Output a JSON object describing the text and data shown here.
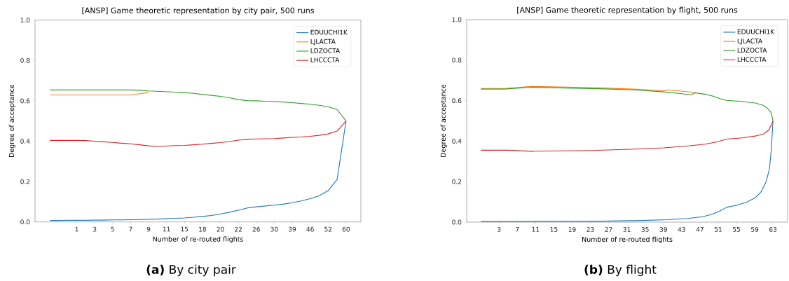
{
  "chart_data": [
    {
      "type": "line",
      "title": "[ANSP] Game theoretic representation by city pair, 500 runs",
      "xlabel": "Number of re-routed flights",
      "ylabel": "Degree of acceptance",
      "legend": "top right",
      "ylim": [
        0,
        1
      ],
      "categories": [
        null,
        null,
        null,
        "1",
        null,
        "3",
        null,
        "5",
        null,
        "7",
        null,
        "9",
        null,
        "11",
        null,
        "15",
        null,
        "18",
        null,
        "20",
        null,
        "22",
        null,
        "26",
        null,
        "30",
        null,
        "39",
        null,
        "46",
        null,
        "52",
        null,
        "60"
      ],
      "yticks": [
        {
          "value": 0,
          "label": "0.0"
        },
        {
          "value": 0.2,
          "label": "0.2"
        },
        {
          "value": 0.4,
          "label": "0.4"
        },
        {
          "value": 0.6,
          "label": "0.6"
        },
        {
          "value": 0.8,
          "label": "0.8"
        },
        {
          "value": 1,
          "label": "1.0"
        }
      ],
      "series": [
        {
          "name": "EDUUCHI1K",
          "color": "#1f77b4",
          "values": [
            0.007,
            0.007,
            0.008,
            0.008,
            0.008,
            0.009,
            0.009,
            0.01,
            0.01,
            0.011,
            0.012,
            0.013,
            0.014,
            0.016,
            0.018,
            0.02,
            0.023,
            0.027,
            0.032,
            0.039,
            0.048,
            0.058,
            0.069,
            0.075,
            0.079,
            0.083,
            0.088,
            0.095,
            0.104,
            0.115,
            0.129,
            0.155,
            0.21,
            0.5
          ]
        },
        {
          "name": "LJLACTA",
          "color": "#ff7f0e",
          "values": [
            0.629,
            0.629,
            0.629,
            0.629,
            0.629,
            0.629,
            0.629,
            0.629,
            0.629,
            0.629,
            0.635,
            0.641,
            null,
            null,
            null,
            null,
            null,
            null,
            null,
            null,
            null,
            null,
            null,
            null,
            null,
            null,
            null,
            null,
            null,
            null,
            null,
            null,
            null,
            null
          ]
        },
        {
          "name": "LDZOCTA",
          "color": "#2ca02c",
          "values": [
            0.654,
            0.654,
            0.654,
            0.654,
            0.654,
            0.654,
            0.654,
            0.654,
            0.654,
            0.654,
            0.652,
            0.649,
            0.647,
            0.645,
            0.643,
            0.641,
            0.637,
            0.632,
            0.627,
            0.622,
            0.615,
            0.606,
            0.601,
            0.6,
            0.598,
            0.597,
            0.594,
            0.591,
            0.587,
            0.583,
            0.578,
            0.571,
            0.557,
            0.5
          ]
        },
        {
          "name": "LHCCCTA",
          "color": "#d62728",
          "values": [
            0.404,
            0.404,
            0.404,
            0.404,
            0.403,
            0.4,
            0.397,
            0.394,
            0.39,
            0.387,
            0.382,
            0.377,
            0.374,
            0.376,
            0.378,
            0.379,
            0.382,
            0.385,
            0.389,
            0.393,
            0.398,
            0.405,
            0.409,
            0.411,
            0.412,
            0.413,
            0.416,
            0.419,
            0.421,
            0.424,
            0.429,
            0.436,
            0.45,
            0.5
          ]
        }
      ],
      "annotations": [
        "**(a)** By city pair"
      ]
    },
    {
      "type": "line",
      "title": "[ANSP] Game theoretic representation by flight, 500 runs",
      "xlabel": "Number of re-routed flights",
      "ylabel": "Degree of acceptance",
      "legend": "top right",
      "xlim": [
        -4.1,
        66.2
      ],
      "ylim": [
        0,
        1
      ],
      "xticks": [
        3,
        7,
        11,
        15,
        19,
        23,
        27,
        31,
        35,
        39,
        43,
        47,
        51,
        55,
        59,
        63
      ],
      "yticks": [
        {
          "value": 0,
          "label": "0.0"
        },
        {
          "value": 0.2,
          "label": "0.2"
        },
        {
          "value": 0.4,
          "label": "0.4"
        },
        {
          "value": 0.6,
          "label": "0.6"
        },
        {
          "value": 0.8,
          "label": "0.8"
        },
        {
          "value": 1,
          "label": "1.0"
        }
      ],
      "series": [
        {
          "name": "EDUUCHI1K",
          "color": "#1f77b4",
          "x": [
            -1,
            23.5,
            34.5,
            39.9,
            44.3,
            47.6,
            49.8,
            51.4,
            52.8,
            55.3,
            57.4,
            59.1,
            60.4,
            61.5,
            62.2,
            62.6,
            63
          ],
          "values": [
            0.002,
            0.004,
            0.008,
            0.012,
            0.018,
            0.027,
            0.04,
            0.055,
            0.073,
            0.085,
            0.1,
            0.12,
            0.15,
            0.2,
            0.26,
            0.35,
            0.5
          ]
        },
        {
          "name": "LJLACTA",
          "color": "#ff7f0e",
          "x": [
            -1,
            4.1,
            10.1,
            18.0,
            26.2,
            33.1,
            39.1,
            39.9,
            46.05
          ],
          "values": [
            0.66,
            0.66,
            0.67,
            0.667,
            0.662,
            0.656,
            0.648,
            0.653,
            0.64
          ]
        },
        {
          "name": "LDZOCTA",
          "color": "#2ca02c",
          "x": [
            -1,
            4.1,
            10.1,
            18.0,
            26.2,
            33.1,
            39.1,
            42.7,
            44.96,
            46.05,
            48.1,
            50.0,
            51.4,
            52.8,
            56.3,
            59.1,
            60.7,
            61.8,
            62.6,
            63
          ],
          "values": [
            0.657,
            0.657,
            0.666,
            0.662,
            0.658,
            0.652,
            0.643,
            0.635,
            0.629,
            0.638,
            0.632,
            0.621,
            0.61,
            0.601,
            0.596,
            0.588,
            0.578,
            0.562,
            0.54,
            0.5
          ]
        },
        {
          "name": "LHCCCTA",
          "color": "#d62728",
          "x": [
            -1,
            4.9,
            10.1,
            23.5,
            31.7,
            39.1,
            44.8,
            48.1,
            50.9,
            52.8,
            56.3,
            59.1,
            61.0,
            62.1,
            63
          ],
          "values": [
            0.355,
            0.355,
            0.35,
            0.354,
            0.36,
            0.367,
            0.377,
            0.385,
            0.397,
            0.41,
            0.416,
            0.425,
            0.436,
            0.455,
            0.5
          ]
        }
      ],
      "annotations": [
        "**(b)** By flight"
      ]
    }
  ]
}
